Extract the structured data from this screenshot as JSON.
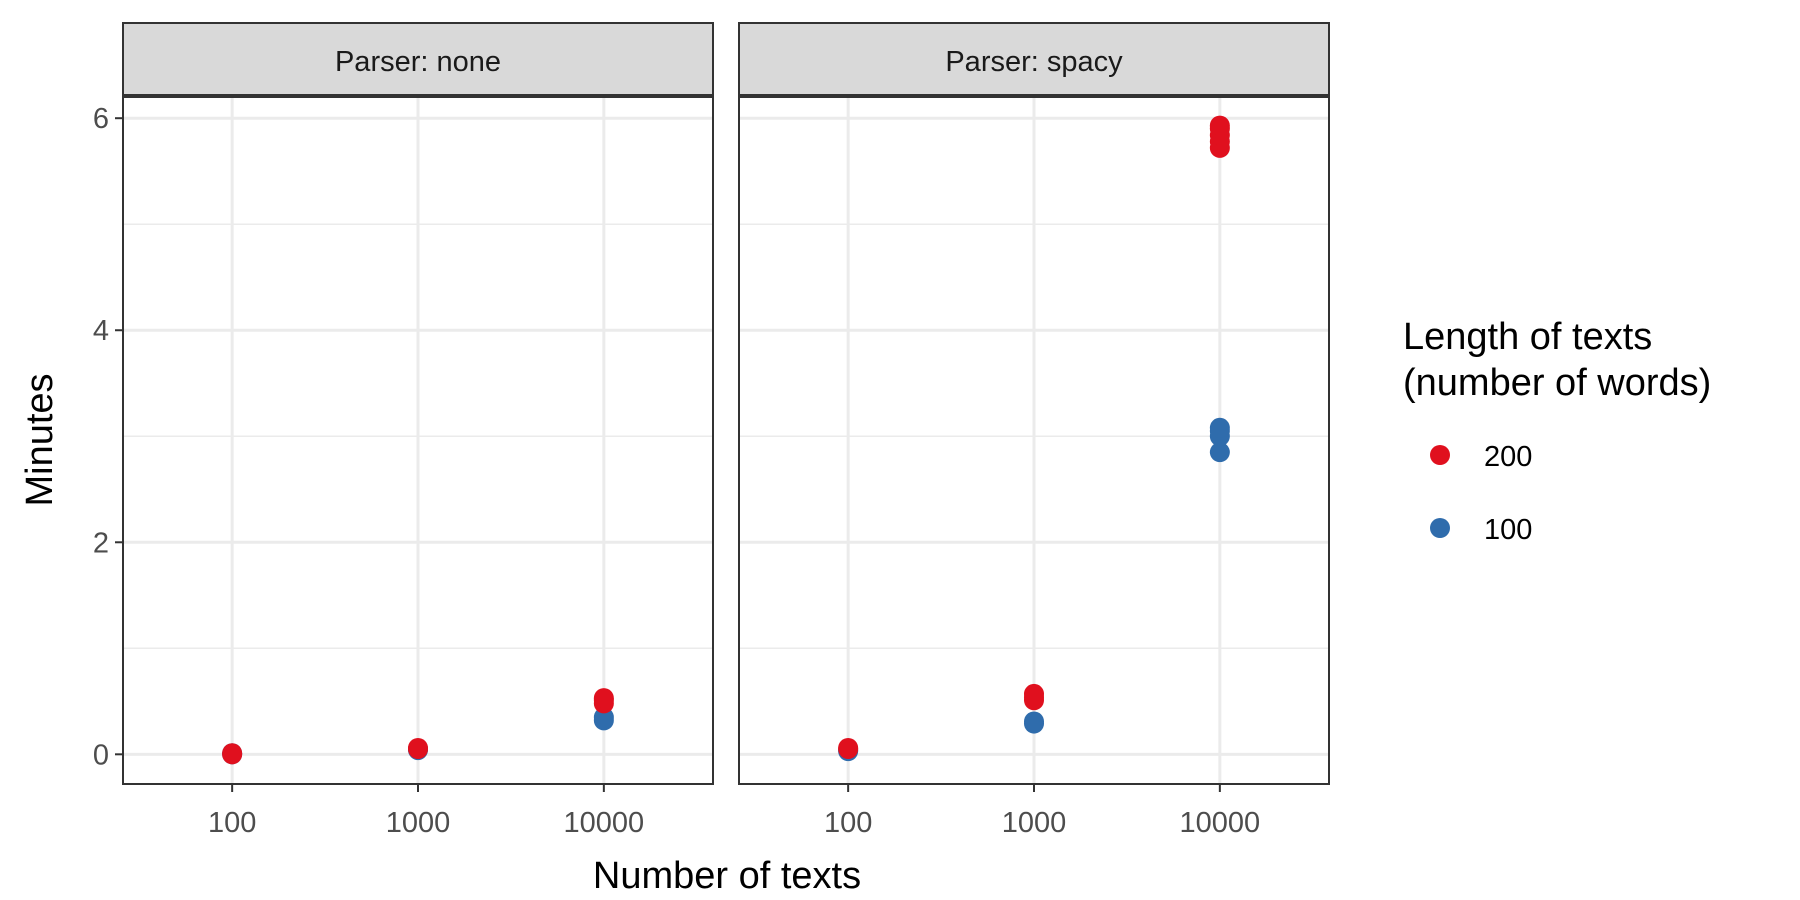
{
  "chart_data": {
    "type": "scatter",
    "xlabel": "Number of texts",
    "ylabel": "Minutes",
    "x_categories": [
      "100",
      "1000",
      "10000"
    ],
    "y_ticks": [
      0,
      2,
      4,
      6
    ],
    "ylim": [
      -0.28,
      6.2
    ],
    "grid": true,
    "legend": {
      "title_lines": [
        "Length of texts",
        "(number of words)"
      ],
      "placement": "right",
      "entries": [
        {
          "label": "200",
          "color": "#e0101e"
        },
        {
          "label": "100",
          "color": "#2f6cac"
        }
      ]
    },
    "panels": [
      {
        "title": "Parser: none",
        "series": [
          {
            "name": "100",
            "color": "#2f6cac",
            "points": [
              {
                "x": "100",
                "y": 0.0
              },
              {
                "x": "100",
                "y": 0.01
              },
              {
                "x": "1000",
                "y": 0.04
              },
              {
                "x": "1000",
                "y": 0.05
              },
              {
                "x": "10000",
                "y": 0.32
              },
              {
                "x": "10000",
                "y": 0.35
              }
            ]
          },
          {
            "name": "200",
            "color": "#e0101e",
            "points": [
              {
                "x": "100",
                "y": 0.0
              },
              {
                "x": "100",
                "y": 0.01
              },
              {
                "x": "1000",
                "y": 0.05
              },
              {
                "x": "1000",
                "y": 0.06
              },
              {
                "x": "10000",
                "y": 0.48
              },
              {
                "x": "10000",
                "y": 0.51
              },
              {
                "x": "10000",
                "y": 0.53
              }
            ]
          }
        ]
      },
      {
        "title": "Parser: spacy",
        "series": [
          {
            "name": "100",
            "color": "#2f6cac",
            "points": [
              {
                "x": "100",
                "y": 0.03
              },
              {
                "x": "100",
                "y": 0.04
              },
              {
                "x": "1000",
                "y": 0.29
              },
              {
                "x": "1000",
                "y": 0.31
              },
              {
                "x": "10000",
                "y": 2.85
              },
              {
                "x": "10000",
                "y": 3.0
              },
              {
                "x": "10000",
                "y": 3.05
              },
              {
                "x": "10000",
                "y": 3.08
              }
            ]
          },
          {
            "name": "200",
            "color": "#e0101e",
            "points": [
              {
                "x": "100",
                "y": 0.05
              },
              {
                "x": "100",
                "y": 0.06
              },
              {
                "x": "1000",
                "y": 0.51
              },
              {
                "x": "1000",
                "y": 0.54
              },
              {
                "x": "1000",
                "y": 0.57
              },
              {
                "x": "10000",
                "y": 5.72
              },
              {
                "x": "10000",
                "y": 5.78
              },
              {
                "x": "10000",
                "y": 5.84
              },
              {
                "x": "10000",
                "y": 5.9
              },
              {
                "x": "10000",
                "y": 5.93
              }
            ]
          }
        ]
      }
    ]
  }
}
